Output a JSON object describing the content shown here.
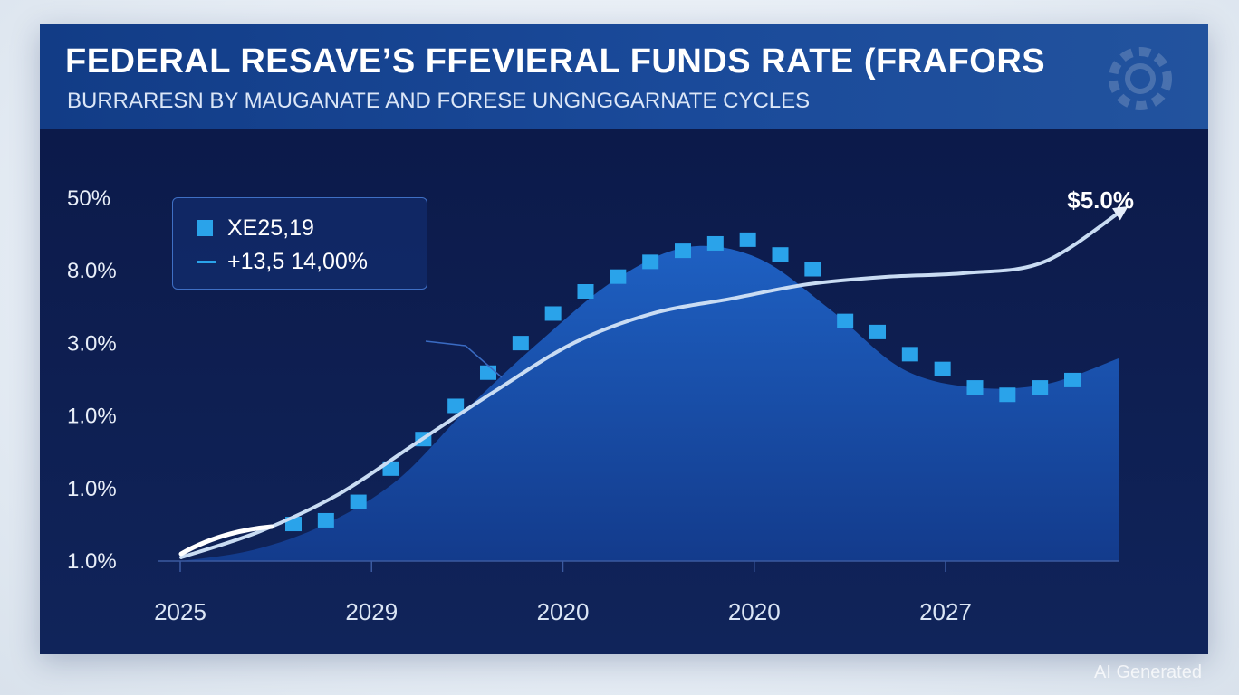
{
  "header": {
    "title": "FEDERAL RESAVE’S FFEVIERAL FUNDS RATE (FRAFORS",
    "subtitle": "BURRARESN BY MAUGANATE AND FORESE UNGNGGARNATE CYCLES"
  },
  "legend": {
    "bar_label": "XE25,19",
    "line_label": "+13,5 14,00%"
  },
  "end_label": "$5.0%",
  "watermark": "AI Generated",
  "colors": {
    "bar": "#2aa3ea",
    "area_top": "#1e5fc0",
    "area_bottom": "#123a8a",
    "trend_line": "#c9dcf3",
    "header": "#1a4a9a",
    "plot_bg": "#0e1f52"
  },
  "chart_data": {
    "type": "bar",
    "title": "FEDERAL RESAVE’S FFEVIERAL FUNDS RATE (FRAFORS",
    "subtitle": "BURRARESN BY MAUGANATE AND FORESE UNGNGGARNATE CYCLES",
    "xlabel": "",
    "ylabel": "",
    "y_tick_labels": [
      "50%",
      "8.0%",
      "3.0%",
      "1.0%",
      "1.0%",
      "1.0%"
    ],
    "x_tick_labels": [
      "2025",
      "2029",
      "2020",
      "2020",
      "2027"
    ],
    "ylim": [
      0,
      5
    ],
    "grid": false,
    "legend_position": "top-left",
    "series": [
      {
        "name": "XE25,19",
        "type": "bar",
        "values": [
          0.6,
          0.65,
          0.9,
          1.35,
          1.75,
          2.2,
          2.65,
          3.05,
          3.45,
          3.75,
          3.95,
          4.15,
          4.3,
          4.4,
          4.45,
          4.25,
          4.05,
          3.35,
          3.2,
          2.9,
          2.7,
          2.45,
          2.35,
          2.45,
          2.55
        ]
      },
      {
        "name": "+13,5 14,00%",
        "type": "area",
        "values": [
          0.0,
          0.15,
          0.5,
          1.1,
          2.1,
          3.0,
          3.8,
          4.25,
          4.1,
          3.4,
          2.6,
          2.35,
          2.4,
          2.75
        ]
      },
      {
        "type": "line",
        "values": [
          0.05,
          0.4,
          0.9,
          1.6,
          2.3,
          2.95,
          3.35,
          3.55,
          3.75,
          3.85,
          3.9,
          4.05,
          4.75
        ]
      }
    ]
  }
}
